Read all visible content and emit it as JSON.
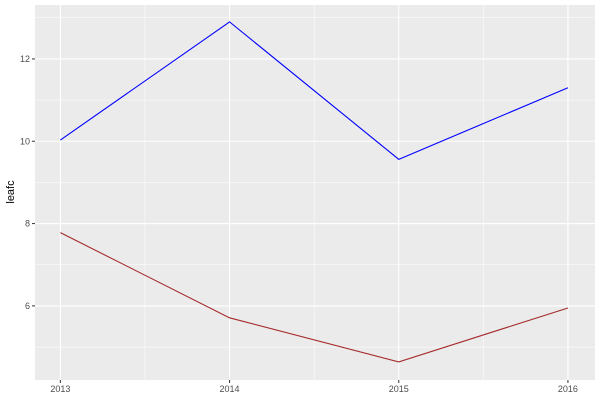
{
  "chart_data": {
    "type": "line",
    "title": "",
    "xlabel": "",
    "ylabel": "leafc",
    "x": [
      2013,
      2014,
      2015,
      2016
    ],
    "x_tick_labels": [
      "2013",
      "2014",
      "2015",
      "2016"
    ],
    "y_ticks": [
      6,
      8,
      10,
      12
    ],
    "y_tick_labels": [
      "6",
      "8",
      "10",
      "12"
    ],
    "xlim": [
      2012.85,
      2016.16
    ],
    "ylim": [
      4.2,
      13.31
    ],
    "grid": true,
    "panel_background": "#EBEBEB",
    "series": [
      {
        "color": "#0000FF",
        "values": [
          10.03,
          12.9,
          9.56,
          11.3
        ]
      },
      {
        "color": "#A52A2A",
        "values": [
          7.78,
          5.71,
          4.64,
          5.95
        ]
      }
    ]
  }
}
